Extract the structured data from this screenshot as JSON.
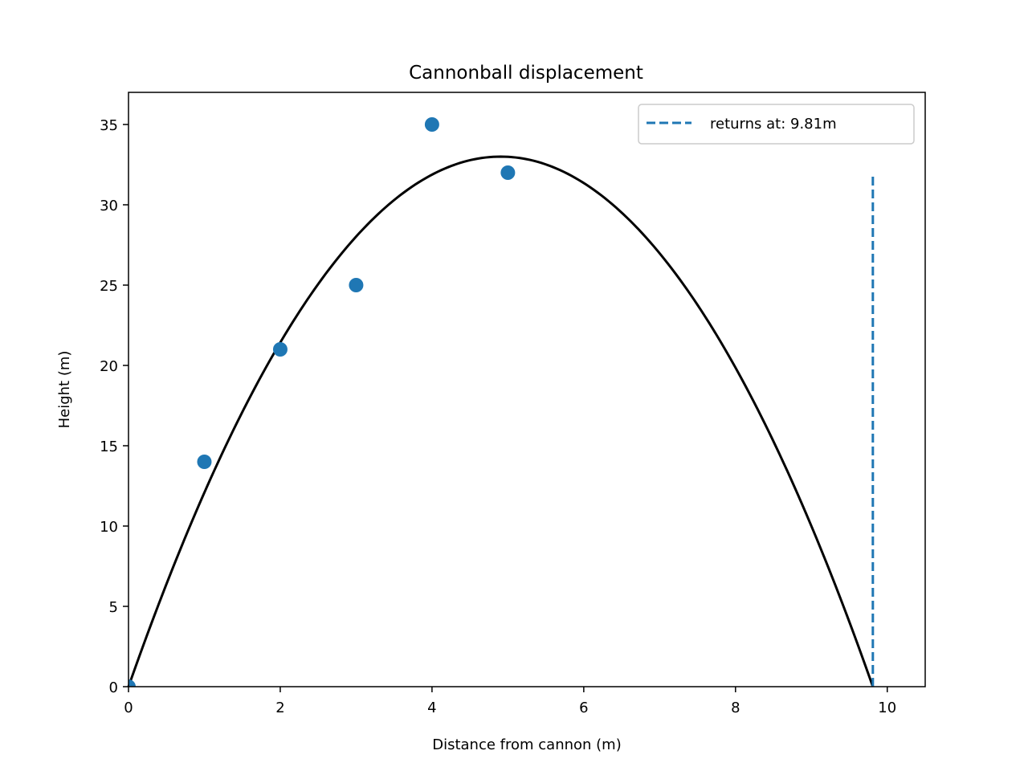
{
  "chart_data": {
    "type": "scatter",
    "title": "Cannonball displacement",
    "xlabel": "Distance from cannon (m)",
    "ylabel": "Height (m)",
    "xlim": [
      0,
      10.5
    ],
    "ylim": [
      0,
      37
    ],
    "x_ticks": [
      0,
      2,
      4,
      6,
      8,
      10
    ],
    "y_ticks": [
      0,
      5,
      10,
      15,
      20,
      25,
      30,
      35
    ],
    "grid": false,
    "legend_position": "upper right",
    "points": {
      "x": [
        0,
        1,
        2,
        3,
        4,
        5
      ],
      "y": [
        0,
        14,
        21,
        25,
        35,
        32
      ],
      "color": "#1f77b4"
    },
    "fit_curve": {
      "type": "parabola",
      "roots": [
        0,
        9.81
      ],
      "peak": [
        4.905,
        33
      ],
      "color": "#000000"
    },
    "return_line": {
      "x": 9.81,
      "y_range": [
        0,
        32
      ],
      "style": "dashed",
      "color": "#1f77b4",
      "legend_label": "returns at: 9.81m"
    }
  }
}
